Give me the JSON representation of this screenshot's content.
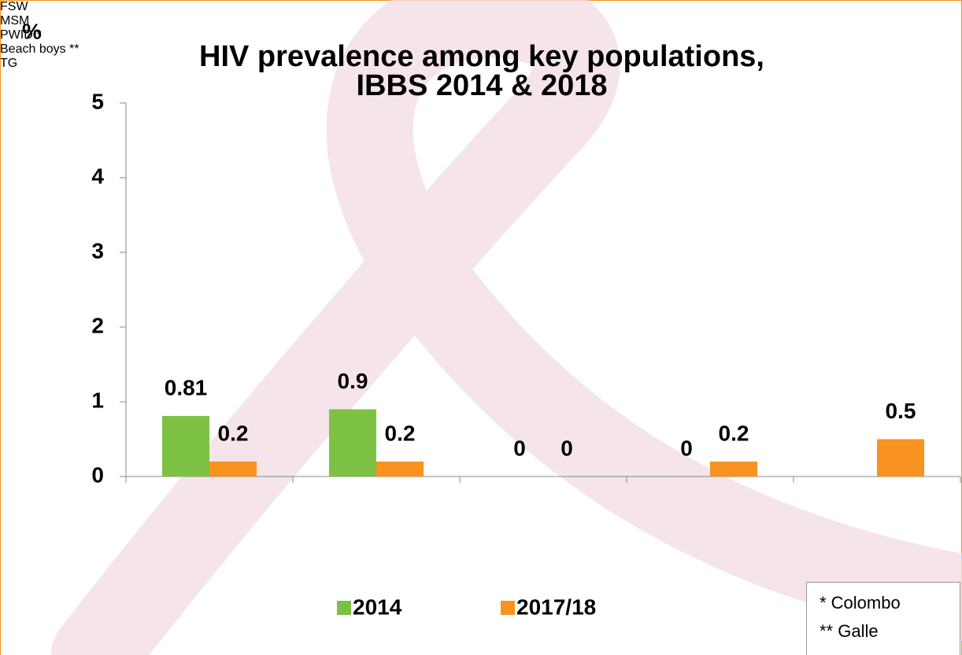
{
  "chart_data": {
    "type": "bar",
    "title": [
      "HIV prevalence among key populations,",
      "IBBS 2014 & 2018"
    ],
    "y_label": "%",
    "categories": [
      "FSW",
      "MSM",
      "PWID *",
      "Beach boys **",
      "TG"
    ],
    "series": [
      {
        "name": "2014",
        "color": "#7cc143",
        "values": [
          0.81,
          0.9,
          0,
          0,
          null
        ]
      },
      {
        "name": "2017/18",
        "color": "#f7931e",
        "values": [
          0.2,
          0.2,
          0,
          0.2,
          0.5
        ]
      }
    ],
    "ylim": [
      0,
      5
    ],
    "yticks": [
      0,
      1,
      2,
      3,
      4,
      5
    ],
    "grid": false,
    "notes": [
      "*  Colombo",
      "** Galle"
    ]
  }
}
